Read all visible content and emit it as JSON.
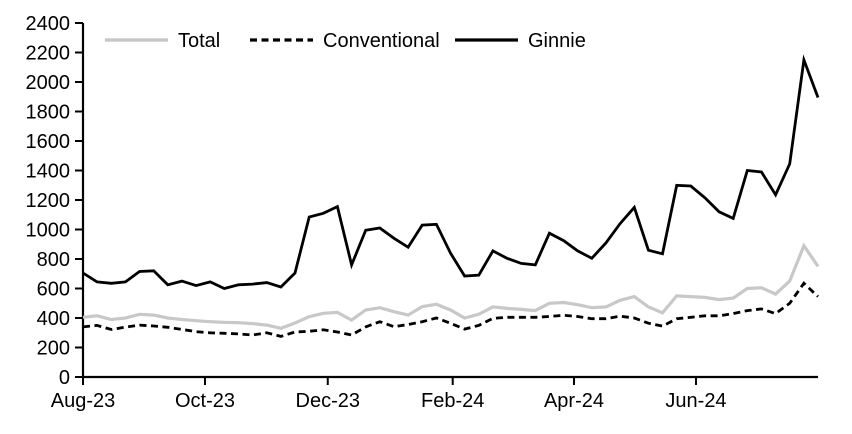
{
  "figure": {
    "background": "#ffffff",
    "axis_color": "#000000",
    "series_black": "#000000",
    "series_gray": "#c8c8c8"
  },
  "chart_data": {
    "type": "line",
    "title": "",
    "xlabel": "",
    "ylabel": "",
    "grid": false,
    "legend_position": "top",
    "ylim": [
      0,
      2400
    ],
    "ytick_step": 200,
    "ytick_labels": [
      "0",
      "200",
      "400",
      "600",
      "800",
      "1000",
      "1200",
      "1400",
      "1600",
      "1800",
      "2000",
      "2200",
      "2400"
    ],
    "xticks": [
      {
        "label": "Aug-23",
        "pos": 0.0
      },
      {
        "label": "Oct-23",
        "pos": 0.166
      },
      {
        "label": "Dec-23",
        "pos": 0.333
      },
      {
        "label": "Feb-24",
        "pos": 0.503
      },
      {
        "label": "Apr-24",
        "pos": 0.668
      },
      {
        "label": "Jun-24",
        "pos": 0.834
      }
    ],
    "x": [
      "Aug-01-23",
      "Aug-08-23",
      "Aug-15-23",
      "Aug-22-23",
      "Aug-29-23",
      "Sep-05-23",
      "Sep-12-23",
      "Sep-19-23",
      "Sep-26-23",
      "Oct-03-23",
      "Oct-10-23",
      "Oct-17-23",
      "Oct-24-23",
      "Oct-31-23",
      "Nov-07-23",
      "Nov-14-23",
      "Nov-21-23",
      "Nov-28-23",
      "Dec-05-23",
      "Dec-12-23",
      "Dec-19-23",
      "Dec-26-23",
      "Jan-02-24",
      "Jan-09-24",
      "Jan-16-24",
      "Jan-23-24",
      "Jan-30-24",
      "Feb-06-24",
      "Feb-13-24",
      "Feb-20-24",
      "Feb-27-24",
      "Mar-05-24",
      "Mar-12-24",
      "Mar-19-24",
      "Mar-26-24",
      "Apr-02-24",
      "Apr-09-24",
      "Apr-16-24",
      "Apr-23-24",
      "Apr-30-24",
      "May-07-24",
      "May-14-24",
      "May-21-24",
      "May-28-24",
      "Jun-04-24",
      "Jun-11-24",
      "Jun-18-24",
      "Jun-25-24",
      "Jul-02-24",
      "Jul-09-24",
      "Jul-16-24",
      "Jul-23-24",
      "Jul-30-24"
    ],
    "series": [
      {
        "name": "Total",
        "color": "#c8c8c8",
        "style": "solid",
        "width": 3.2,
        "values": [
          405,
          415,
          390,
          400,
          425,
          420,
          400,
          390,
          382,
          375,
          370,
          368,
          362,
          352,
          330,
          366,
          409,
          432,
          438,
          386,
          454,
          470,
          443,
          420,
          477,
          493,
          454,
          400,
          425,
          475,
          465,
          458,
          450,
          500,
          505,
          490,
          470,
          475,
          520,
          545,
          475,
          435,
          550,
          545,
          540,
          525,
          535,
          600,
          605,
          562,
          650,
          890,
          750
        ]
      },
      {
        "name": "Conventional",
        "color": "#000000",
        "style": "dashed",
        "width": 2.8,
        "values": [
          340,
          350,
          322,
          338,
          352,
          346,
          337,
          323,
          307,
          300,
          296,
          292,
          285,
          300,
          275,
          305,
          310,
          320,
          305,
          285,
          340,
          375,
          341,
          356,
          375,
          400,
          364,
          325,
          350,
          398,
          405,
          405,
          405,
          410,
          418,
          410,
          395,
          395,
          412,
          400,
          365,
          345,
          395,
          405,
          415,
          415,
          430,
          450,
          462,
          430,
          500,
          635,
          545
        ]
      },
      {
        "name": "Ginnie",
        "color": "#000000",
        "style": "solid",
        "width": 2.8,
        "values": [
          705,
          645,
          635,
          645,
          715,
          720,
          625,
          650,
          620,
          645,
          600,
          625,
          630,
          640,
          610,
          705,
          1085,
          1110,
          1155,
          760,
          995,
          1010,
          940,
          880,
          1030,
          1035,
          840,
          685,
          690,
          855,
          805,
          770,
          760,
          975,
          925,
          855,
          805,
          910,
          1040,
          1150,
          860,
          835,
          1300,
          1295,
          1215,
          1120,
          1075,
          1400,
          1390,
          1235,
          1445,
          2150,
          1895
        ]
      }
    ]
  }
}
